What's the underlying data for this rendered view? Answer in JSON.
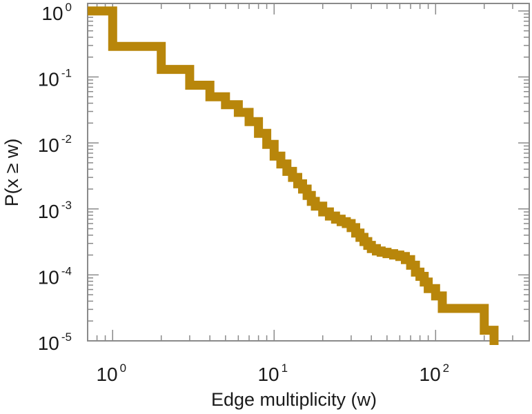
{
  "chart_data": {
    "type": "line",
    "step": true,
    "title": "",
    "xlabel": "Edge multiplicity (w)",
    "ylabel": "P(x ≥ w)",
    "xscale": "log",
    "yscale": "log",
    "xlim": [
      0.7,
      380
    ],
    "ylim": [
      1e-05,
      1.3
    ],
    "x_ticks": [
      {
        "value": 1,
        "base": "10",
        "exp": "0"
      },
      {
        "value": 10,
        "base": "10",
        "exp": "1"
      },
      {
        "value": 100,
        "base": "10",
        "exp": "2"
      }
    ],
    "y_ticks": [
      {
        "value": 1,
        "base": "10",
        "exp": "0"
      },
      {
        "value": 0.1,
        "base": "10",
        "exp": "-1"
      },
      {
        "value": 0.01,
        "base": "10",
        "exp": "-2"
      },
      {
        "value": 0.001,
        "base": "10",
        "exp": "-3"
      },
      {
        "value": 0.0001,
        "base": "10",
        "exp": "-4"
      },
      {
        "value": 1e-05,
        "base": "10",
        "exp": "-5"
      }
    ],
    "grid": false,
    "line_color": "#b8860b",
    "series": [
      {
        "name": "",
        "x": [
          0.7,
          1,
          2,
          3,
          4,
          5,
          6,
          7,
          8,
          9,
          10,
          11,
          12,
          13,
          14,
          15,
          16,
          17,
          18,
          20,
          22,
          24,
          26,
          28,
          30,
          32,
          34,
          36,
          38,
          40,
          43,
          46,
          50,
          55,
          60,
          65,
          70,
          75,
          80,
          85,
          90,
          100,
          110,
          200,
          230
        ],
        "y": [
          1,
          0.29,
          0.13,
          0.075,
          0.05,
          0.038,
          0.029,
          0.021,
          0.014,
          0.0095,
          0.0063,
          0.0048,
          0.0037,
          0.003,
          0.0024,
          0.002,
          0.0016,
          0.0013,
          0.0011,
          0.0009,
          0.00078,
          0.0007,
          0.00064,
          0.0006,
          0.00052,
          0.00043,
          0.00037,
          0.00032,
          0.00028,
          0.00025,
          0.00023,
          0.00022,
          0.00021,
          0.0002,
          0.00019,
          0.00017,
          0.00014,
          0.00011,
          9.5e-05,
          7.8e-05,
          6.2e-05,
          4.8e-05,
          3.1e-05,
          1.45e-05,
          1e-05
        ]
      }
    ]
  }
}
